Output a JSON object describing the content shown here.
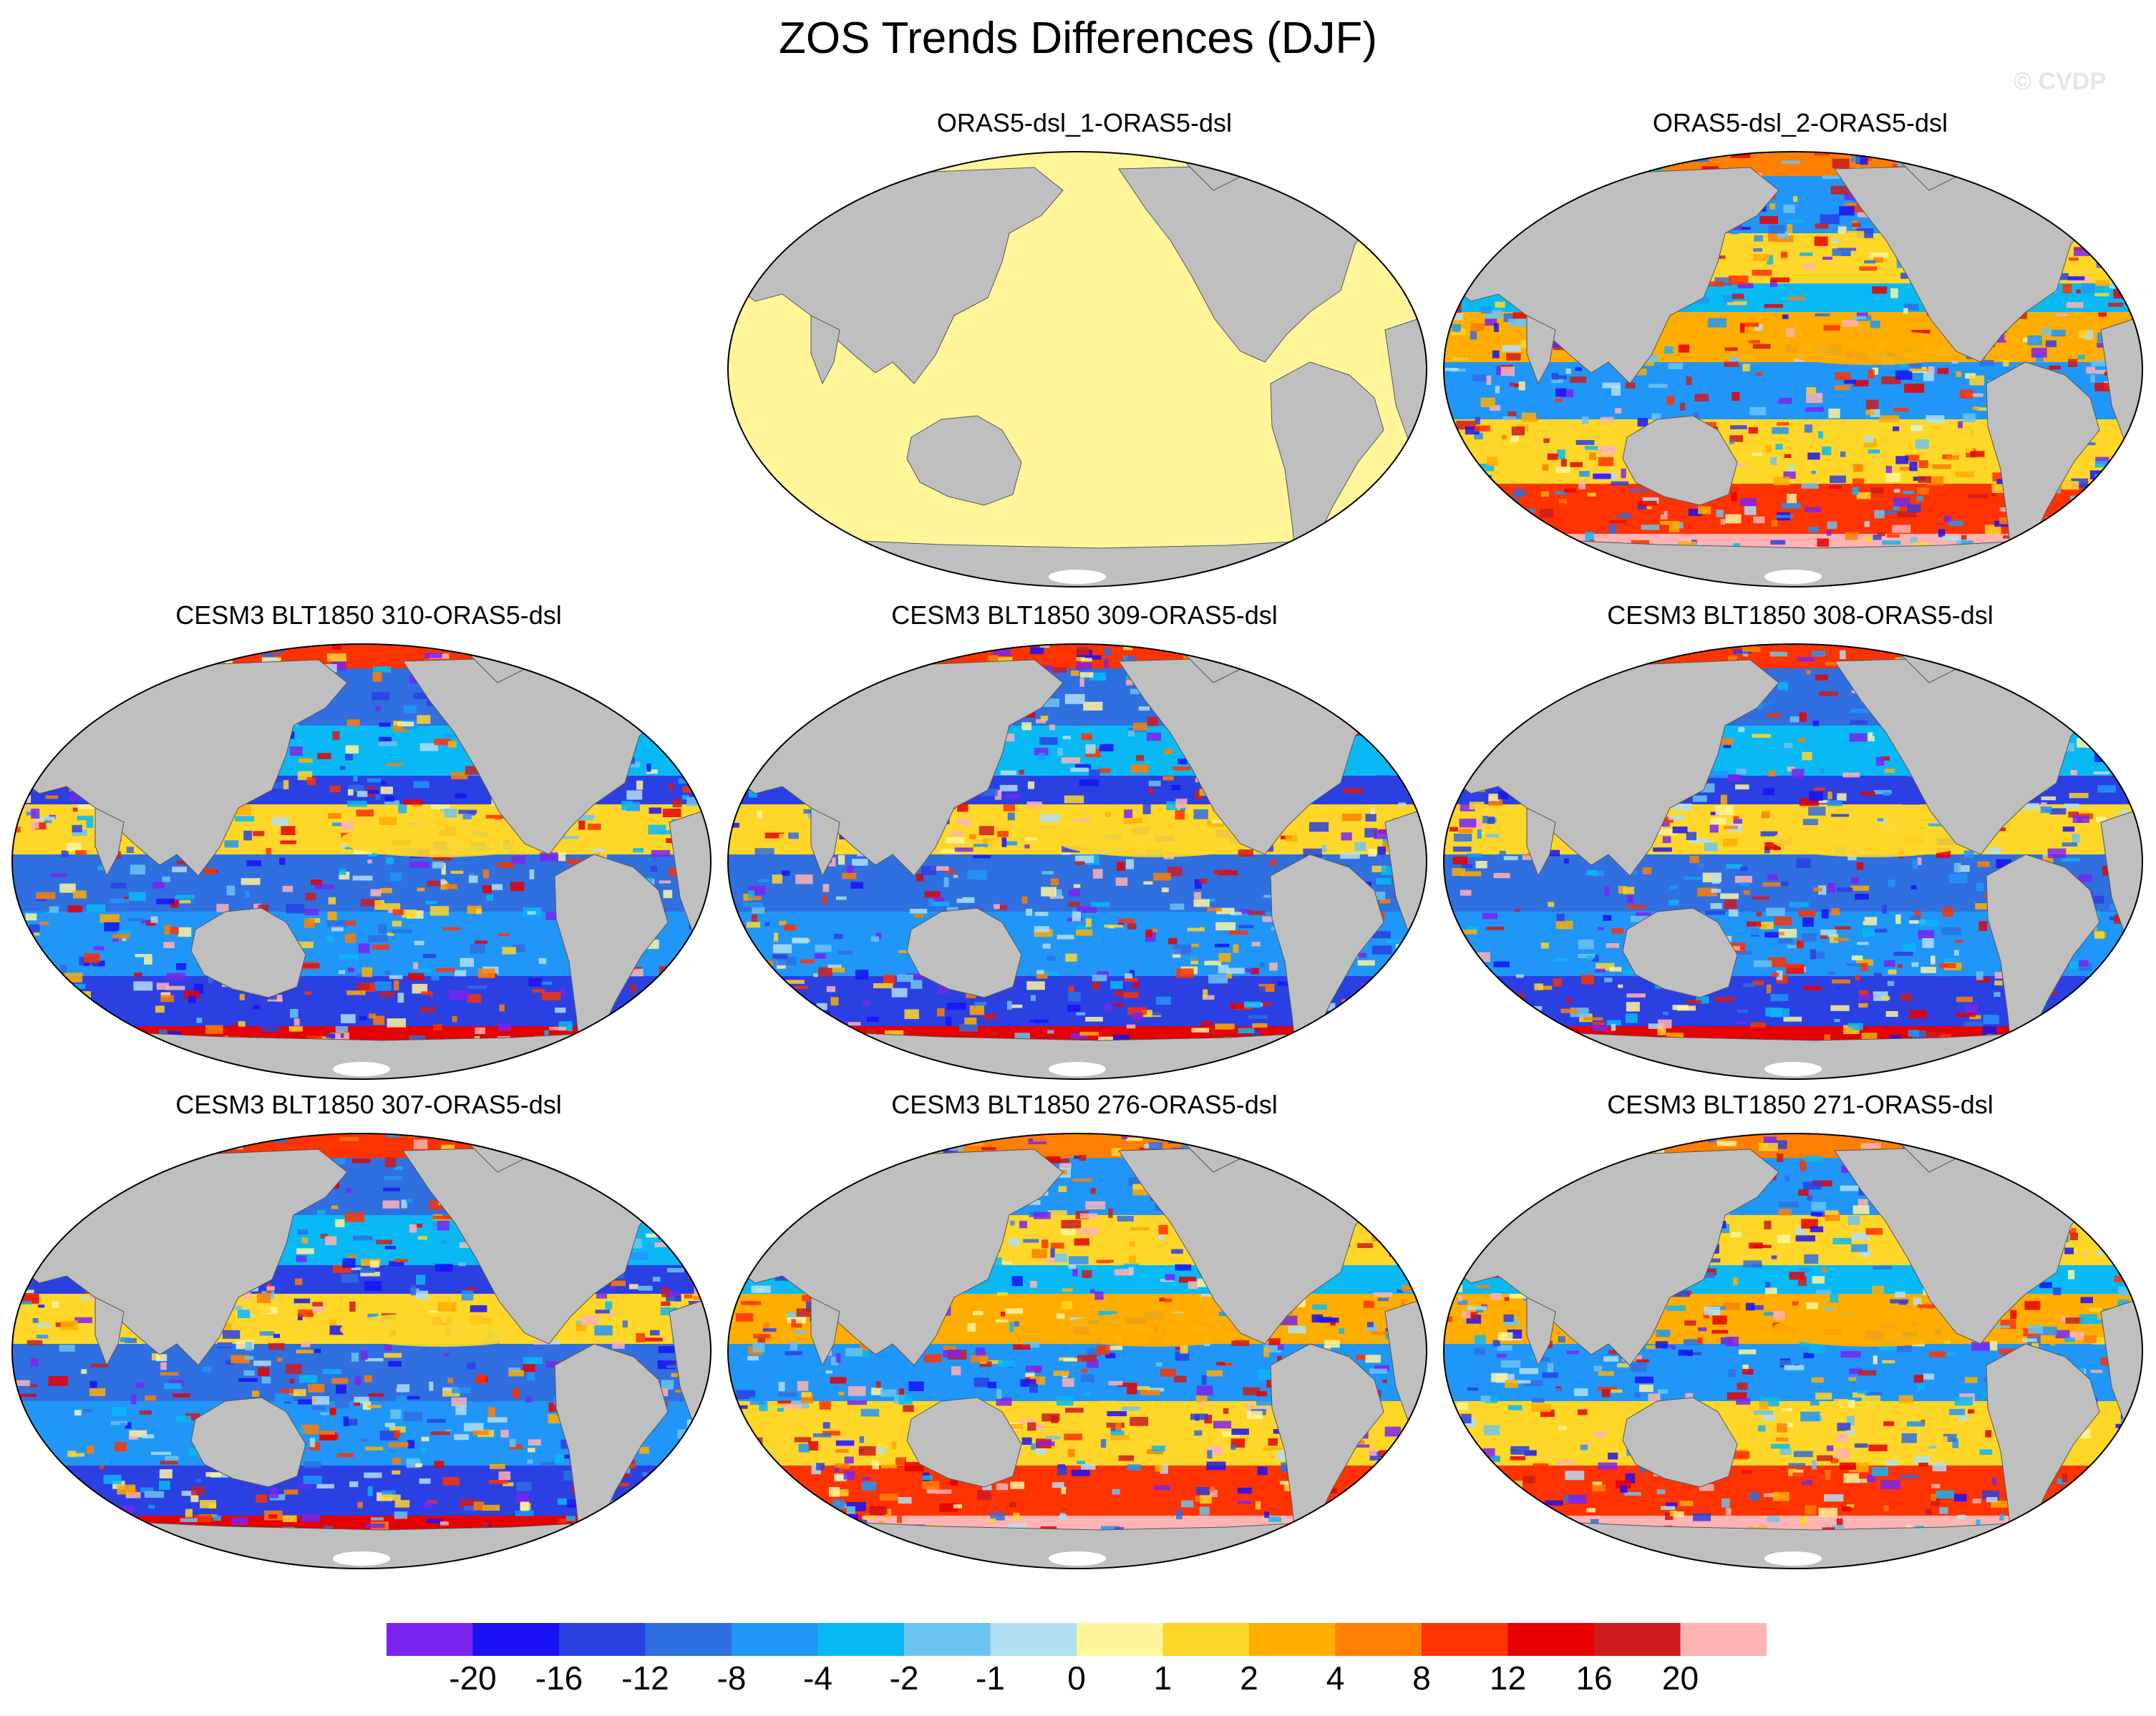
{
  "title": "ZOS Trends Differences (DJF)",
  "watermark": "© CVDP",
  "panels": [
    {
      "title": "ORAS5-dsl_1-ORAS5-dsl",
      "pattern": "zero"
    },
    {
      "title": "ORAS5-dsl_2-ORAS5-dsl",
      "pattern": "pos"
    },
    {
      "title": "CESM3 BLT1850 310-ORAS5-dsl",
      "pattern": "neg"
    },
    {
      "title": "CESM3 BLT1850 309-ORAS5-dsl",
      "pattern": "neg"
    },
    {
      "title": "CESM3 BLT1850 308-ORAS5-dsl",
      "pattern": "neg"
    },
    {
      "title": "CESM3 BLT1850 307-ORAS5-dsl",
      "pattern": "neg"
    },
    {
      "title": "CESM3 BLT1850 276-ORAS5-dsl",
      "pattern": "pos"
    },
    {
      "title": "CESM3 BLT1850 271-ORAS5-dsl",
      "pattern": "pos"
    }
  ],
  "colorbar": {
    "colors": [
      "#7b24ee",
      "#1a12f5",
      "#2b40e3",
      "#2f6fe0",
      "#2096f8",
      "#09b9f6",
      "#6cc4f0",
      "#b3dff2",
      "#fff59c",
      "#ffd728",
      "#ffae00",
      "#ff7f00",
      "#ff3300",
      "#e60000",
      "#cc1c1c",
      "#ffb3b3"
    ],
    "labels": [
      "-20",
      "-16",
      "-12",
      "-8",
      "-4",
      "-2",
      "-1",
      "0",
      "1",
      "2",
      "4",
      "8",
      "12",
      "16",
      "20"
    ]
  },
  "colors": {
    "land": "#bfbfbf",
    "zero_ocean": "#fff69a",
    "ice": "#ffffff"
  }
}
